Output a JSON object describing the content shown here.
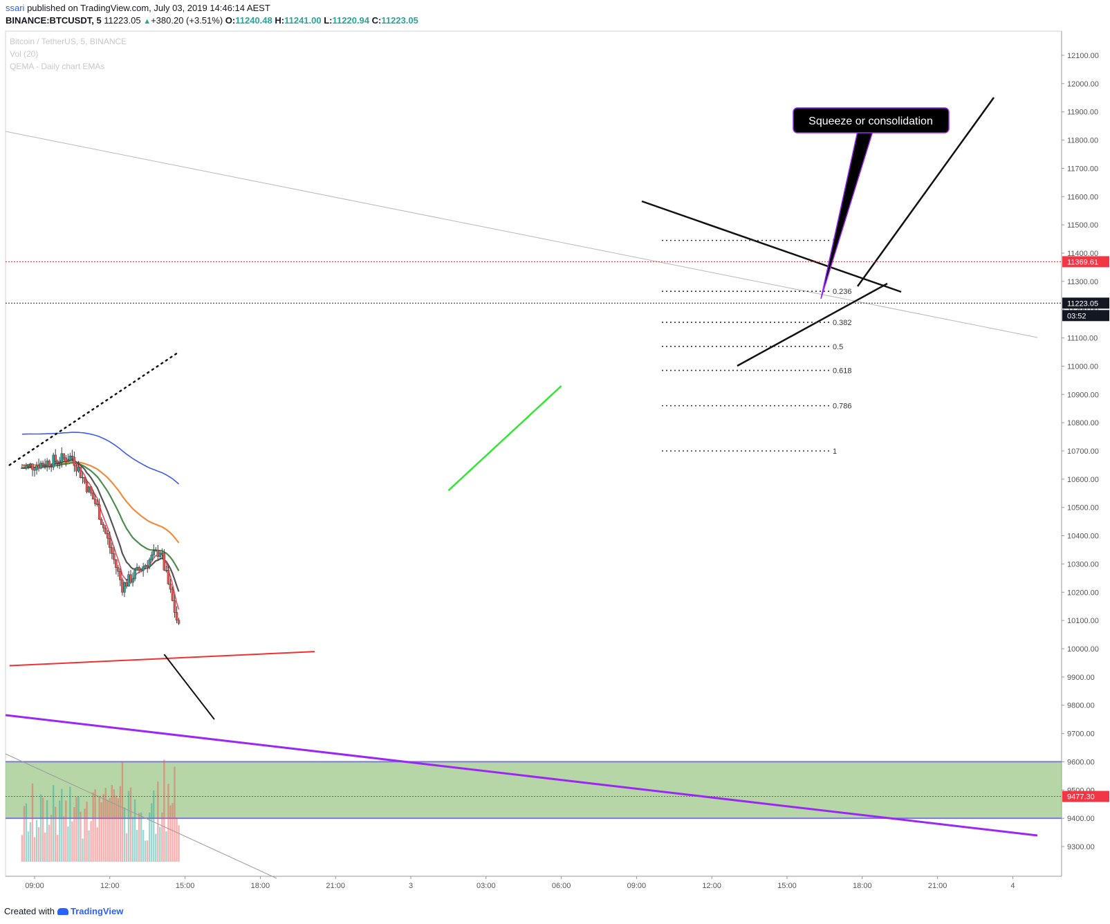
{
  "header": {
    "publisher": "ssari",
    "published_text": "published on TradingView.com, July 03, 2019 14:46:14 AEST",
    "symbol": "BINANCE:BTCUSDT, 5",
    "last": "11223.05",
    "change": "+380.20 (+3.51%)",
    "o_label": "O:",
    "o": "11240.48",
    "h_label": "H:",
    "h": "11241.00",
    "l_label": "L:",
    "l": "11220.94",
    "c_label": "C:",
    "c": "11223.05"
  },
  "legend": {
    "series_name": "Bitcoin / TetherUS, 5, BINANCE",
    "volume": "Vol (20)",
    "indicator": "QEMA - Daily chart EMAs"
  },
  "annotation": {
    "callout": "Squeeze or consolidation"
  },
  "price_tags": {
    "red_line": "11369.61",
    "last_price": "11223.05",
    "countdown": "03:52",
    "zone_line": "9477.30"
  },
  "footer": {
    "created_with": "Created with",
    "brand": "TradingView"
  },
  "colors": {
    "up": "#26a69a",
    "down": "#ef5350",
    "zone_fill": "#8fc07a",
    "zone_border": "#7b79d9",
    "purple_line": "#9c27f5",
    "red_line": "#f23030",
    "green_trend": "#33e633",
    "ema_black": "#555555",
    "ema_green": "#4c8c4c",
    "ema_orange": "#f08c3c",
    "ema_blue": "#3d5ce8",
    "ema_red": "#e8485a"
  },
  "chart_data": {
    "type": "candlestick",
    "y_axis_ticks": [
      12100,
      12000,
      11900,
      11800,
      11700,
      11600,
      11500,
      11400,
      11300,
      11200,
      11100,
      11000,
      10900,
      10800,
      10700,
      10600,
      10500,
      10400,
      10300,
      10200,
      10100,
      10000,
      9900,
      9800,
      9700,
      9600,
      9500,
      9400,
      9300
    ],
    "y_tick_suffix": ".00",
    "x_axis_labels": [
      "09:00",
      "12:00",
      "15:00",
      "18:00",
      "21:00",
      "3",
      "03:00",
      "06:00",
      "09:00",
      "12:00",
      "15:00",
      "18:00",
      "21:00",
      "4"
    ],
    "ylim": [
      9240,
      12170
    ],
    "key_points": [
      [
        "08:30",
        10640
      ],
      [
        "10:30",
        10680
      ],
      [
        "11:30",
        10500
      ],
      [
        "12:30",
        10220
      ],
      [
        "14:00",
        10350
      ],
      [
        "15:00",
        9980
      ],
      [
        "16:00",
        9780
      ],
      [
        "17:00",
        9840
      ],
      [
        "18:30",
        9880
      ],
      [
        "19:00",
        10330
      ],
      [
        "20:00",
        10200
      ],
      [
        "21:00",
        9950
      ],
      [
        "21:30",
        9760
      ],
      [
        "22:00",
        10120
      ],
      [
        "23:30",
        10050
      ],
      [
        "00:30",
        9940
      ],
      [
        "01:00",
        10100
      ],
      [
        "01:30",
        10520
      ],
      [
        "02:30",
        10600
      ],
      [
        "03:30",
        10520
      ],
      [
        "04:30",
        10780
      ],
      [
        "05:30",
        10640
      ],
      [
        "06:00",
        10920
      ],
      [
        "07:00",
        10700
      ],
      [
        "08:00",
        10660
      ],
      [
        "09:00",
        10830
      ],
      [
        "09:30",
        10720
      ],
      [
        "10:30",
        11050
      ],
      [
        "11:30",
        11420
      ],
      [
        "12:30",
        11220
      ],
      [
        "13:00",
        11100
      ],
      [
        "14:00",
        11370
      ],
      [
        "14:45",
        11223
      ]
    ],
    "fibonacci": [
      {
        "level": "0",
        "price": 11445
      },
      {
        "level": "0.236",
        "price": 11265
      },
      {
        "level": "0.382",
        "price": 11155
      },
      {
        "level": "0.5",
        "price": 11070
      },
      {
        "level": "0.618",
        "price": 10985
      },
      {
        "level": "0.786",
        "price": 10860
      },
      {
        "level": "1",
        "price": 10700
      }
    ],
    "horizontal_lines": [
      {
        "name": "red-dotted",
        "price": 11369.61
      },
      {
        "name": "last-price",
        "price": 11223.05
      },
      {
        "name": "zone-mid",
        "price": 9477.3
      }
    ],
    "demand_zone": {
      "from": 9400,
      "to": 9600
    }
  }
}
